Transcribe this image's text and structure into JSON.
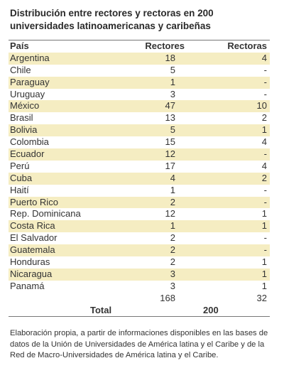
{
  "title": "Distribución entre rectores y rectoras en 200 universidades latinoamericanas y caribeñas",
  "table": {
    "headers": [
      "País",
      "Rectores",
      "Rectoras"
    ],
    "rows": [
      {
        "country": "Argentina",
        "rectores": "18",
        "rectoras": "4"
      },
      {
        "country": "Chile",
        "rectores": "5",
        "rectoras": "-"
      },
      {
        "country": "Paraguay",
        "rectores": "1",
        "rectoras": "-"
      },
      {
        "country": "Uruguay",
        "rectores": "3",
        "rectoras": "-"
      },
      {
        "country": "México",
        "rectores": "47",
        "rectoras": "10"
      },
      {
        "country": "Brasil",
        "rectores": "13",
        "rectoras": "2"
      },
      {
        "country": "Bolivia",
        "rectores": "5",
        "rectoras": "1"
      },
      {
        "country": "Colombia",
        "rectores": "15",
        "rectoras": "4"
      },
      {
        "country": "Ecuador",
        "rectores": "12",
        "rectoras": "-"
      },
      {
        "country": "Perú",
        "rectores": "17",
        "rectoras": "4"
      },
      {
        "country": "Cuba",
        "rectores": "4",
        "rectoras": "2"
      },
      {
        "country": "Haití",
        "rectores": "1",
        "rectoras": "-"
      },
      {
        "country": "Puerto Rico",
        "rectores": "2",
        "rectoras": "-"
      },
      {
        "country": "Rep. Dominicana",
        "rectores": "12",
        "rectoras": "1"
      },
      {
        "country": "Costa Rica",
        "rectores": "1",
        "rectoras": "1"
      },
      {
        "country": "El Salvador",
        "rectores": "2",
        "rectoras": "-"
      },
      {
        "country": "Guatemala",
        "rectores": "2",
        "rectoras": "-"
      },
      {
        "country": "Honduras",
        "rectores": "2",
        "rectoras": "1"
      },
      {
        "country": "Nicaragua",
        "rectores": "3",
        "rectoras": "1"
      },
      {
        "country": "Panamá",
        "rectores": "3",
        "rectoras": "1"
      }
    ],
    "sums": {
      "rectores": "168",
      "rectoras": "32"
    },
    "total": {
      "label": "Total",
      "value": "200"
    }
  },
  "footnote": "Elaboración propia, a partir de informaciones disponibles en las bases de datos de la Unión de Universidades de América latina y el Caribe y de la Red de Macro-Universidades de América latina y el Caribe.",
  "colors": {
    "shaded_row": "#f5edc2",
    "text": "#333333"
  }
}
